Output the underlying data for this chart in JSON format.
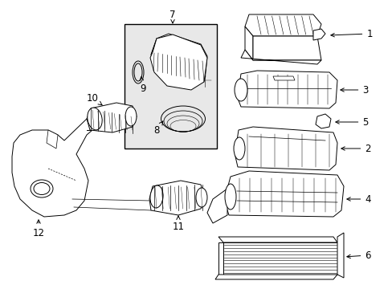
{
  "bg": "#ffffff",
  "lc": "#000000",
  "box_bg": "#e8e8e8",
  "lw": 0.7,
  "figsize": [
    4.89,
    3.6
  ],
  "dpi": 100
}
